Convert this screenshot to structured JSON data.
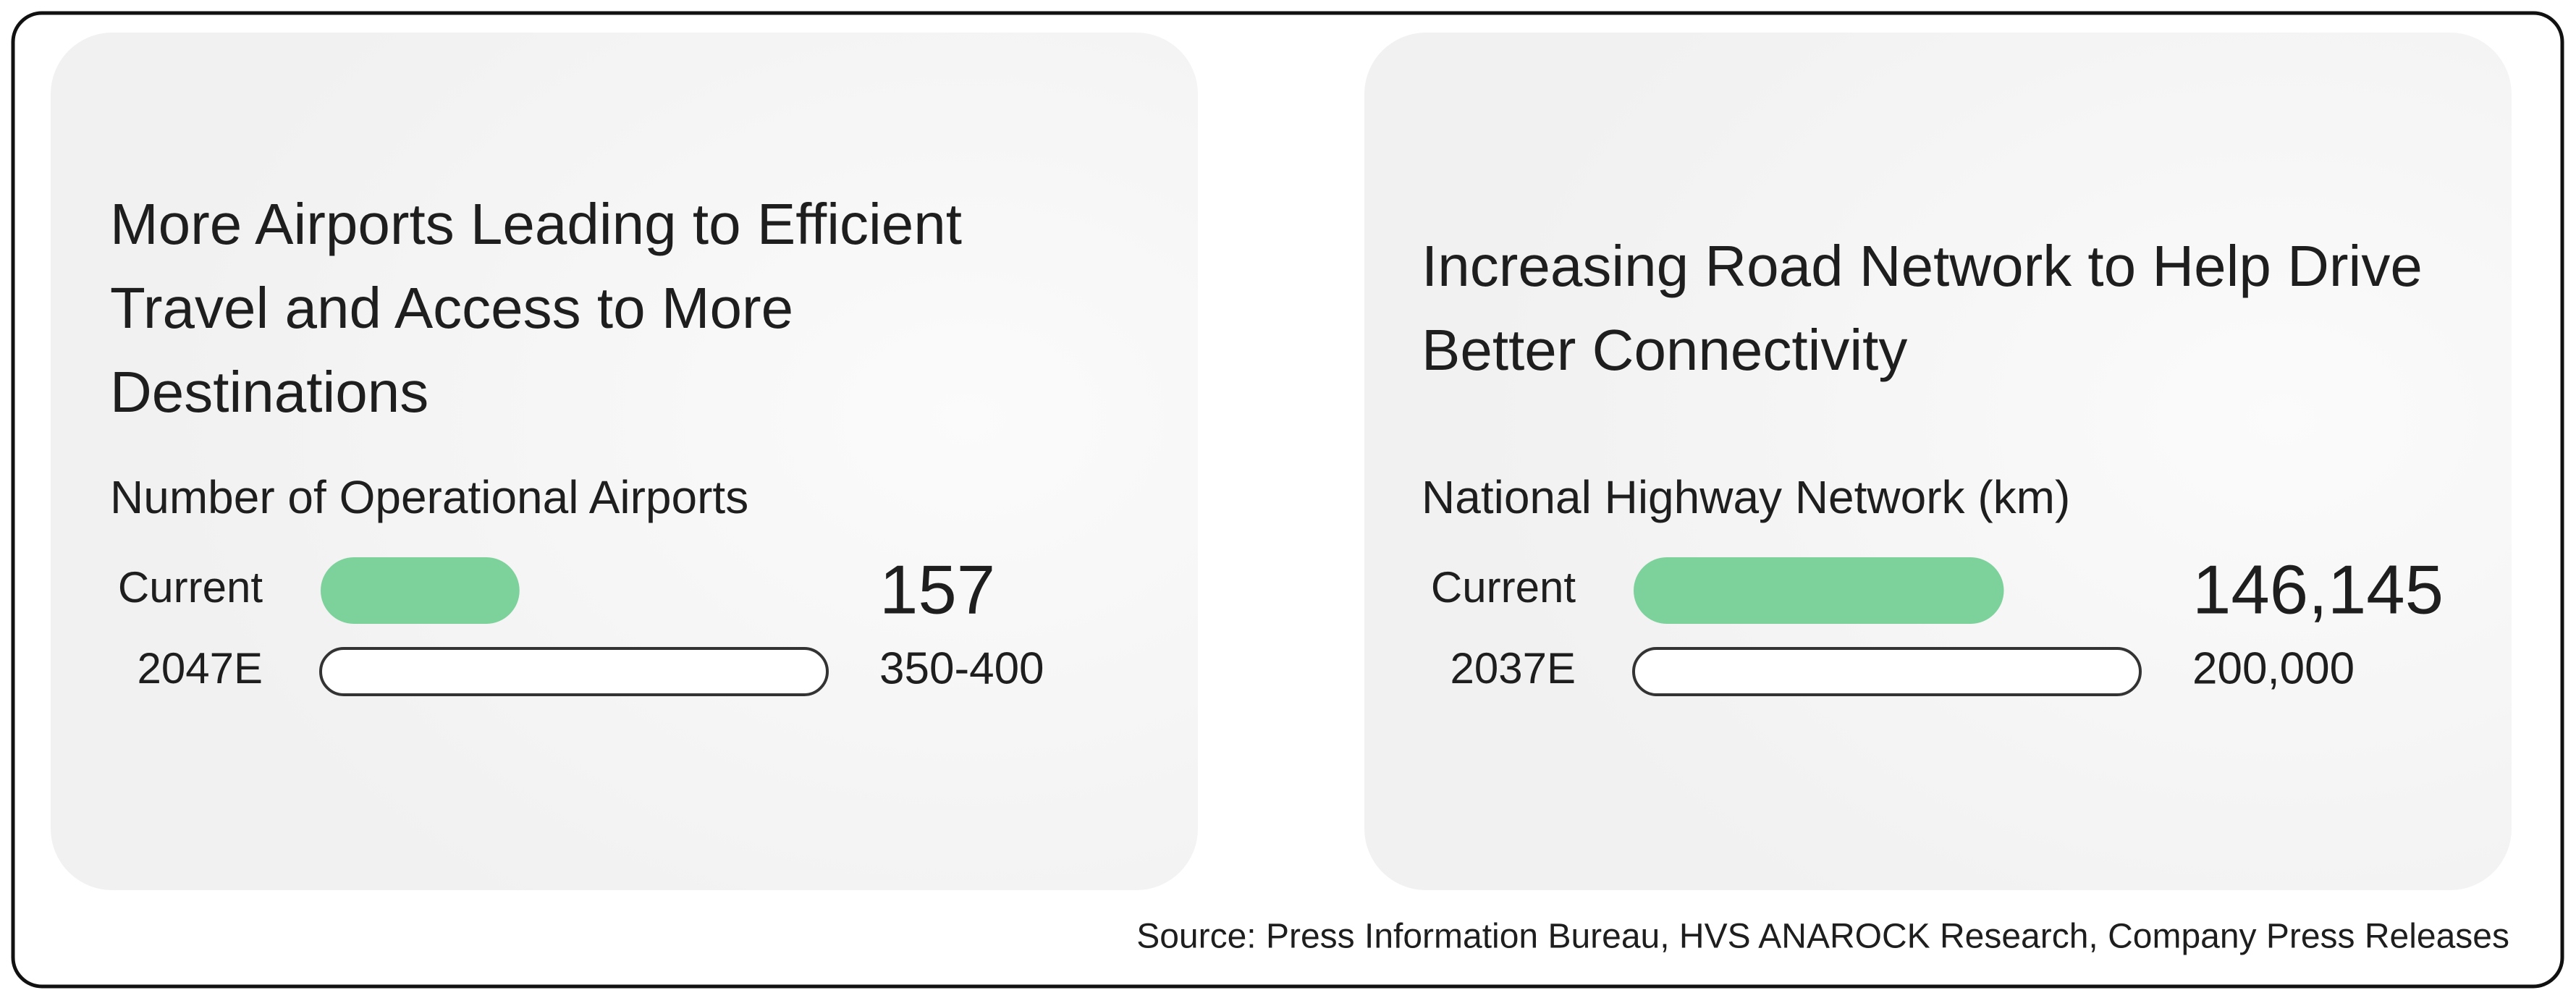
{
  "chart_data": [
    {
      "type": "bar",
      "orientation": "horizontal",
      "title": "More Airports Leading to Efficient Travel and Access to More Destinations",
      "subtitle": "Number of Operational Airports",
      "categories": [
        "Current",
        "2047E"
      ],
      "values": [
        157,
        400
      ],
      "value_labels": [
        "157",
        "350-400"
      ],
      "styles": [
        "filled",
        "outline"
      ],
      "color": "#7dd19b"
    },
    {
      "type": "bar",
      "orientation": "horizontal",
      "title": "Increasing Road Network to Help Drive Better Connectivity",
      "subtitle": "National Highway Network (km)",
      "categories": [
        "Current",
        "2037E"
      ],
      "values": [
        146145,
        200000
      ],
      "value_labels": [
        "146,145",
        "200,000"
      ],
      "styles": [
        "filled",
        "outline"
      ],
      "color": "#7dd19b"
    }
  ],
  "source": "Source: Press Information Bureau, HVS ANAROCK Research, Company Press Releases"
}
